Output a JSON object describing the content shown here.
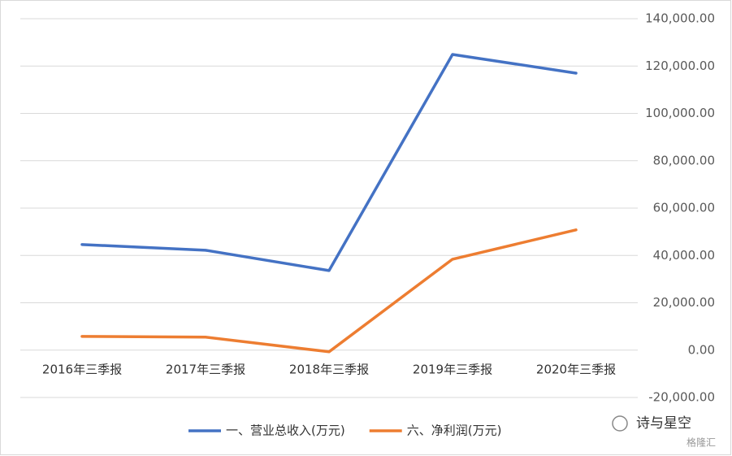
{
  "chart_data": {
    "type": "line",
    "categories": [
      "2016年三季报",
      "2017年三季报",
      "2018年三季报",
      "2019年三季报",
      "2020年三季报"
    ],
    "series": [
      {
        "name": "一、营业总收入(万元)",
        "color": "#4472c4",
        "values": [
          44600,
          42200,
          33600,
          124900,
          117000
        ]
      },
      {
        "name": "六、净利润(万元)",
        "color": "#ed7d31",
        "values": [
          5800,
          5500,
          -700,
          38400,
          50800
        ]
      }
    ],
    "ylim": [
      -20000,
      140000
    ],
    "yticks": [
      {
        "value": -20000,
        "label": "-20,000.00"
      },
      {
        "value": 0,
        "label": "0.00"
      },
      {
        "value": 20000,
        "label": "20,000.00"
      },
      {
        "value": 40000,
        "label": "40,000.00"
      },
      {
        "value": 60000,
        "label": "60,000.00"
      },
      {
        "value": 80000,
        "label": "80,000.00"
      },
      {
        "value": 100000,
        "label": "100,000.00"
      },
      {
        "value": 120000,
        "label": "120,000.00"
      },
      {
        "value": 140000,
        "label": "140,000.00"
      }
    ],
    "y_axis_side": "right",
    "grid": true,
    "legend": "bottom",
    "watermark": {
      "text": "诗与星空",
      "source": "格隆汇"
    }
  }
}
